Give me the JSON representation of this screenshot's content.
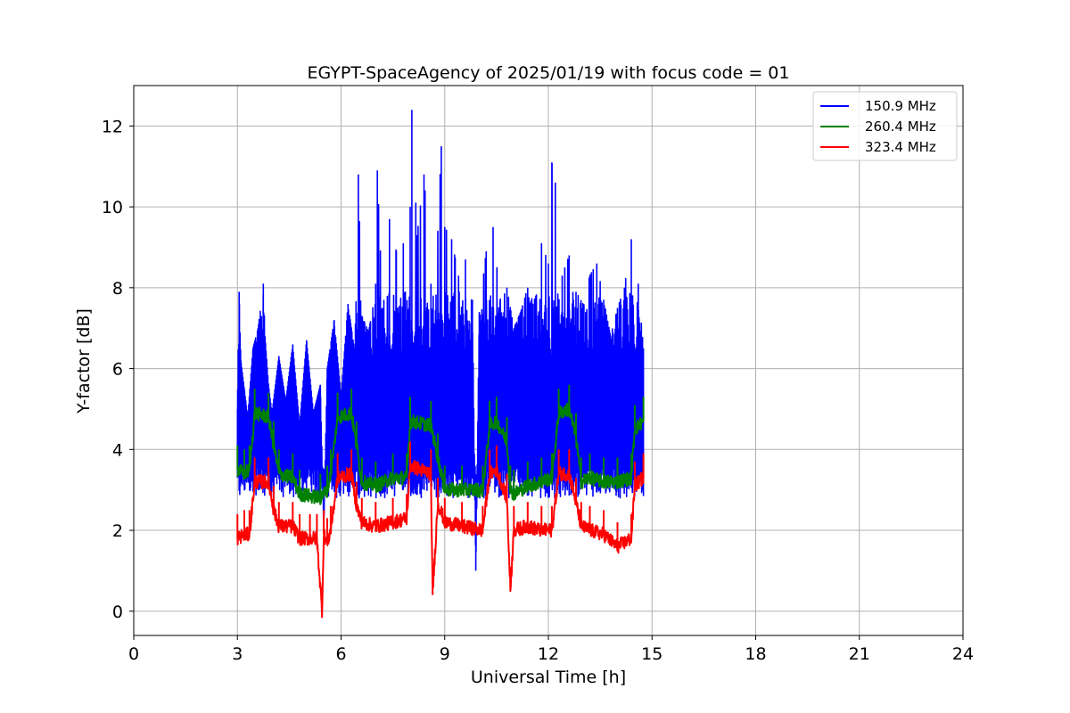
{
  "chart_data": {
    "type": "line",
    "title": "EGYPT-SpaceAgency of 2025/01/19 with focus code = 01",
    "xlabel": "Universal Time [h]",
    "ylabel": "Y-factor [dB]",
    "xlim": [
      0,
      24
    ],
    "ylim": [
      -0.6,
      13
    ],
    "xticks": [
      "0",
      "3",
      "6",
      "9",
      "12",
      "15",
      "18",
      "21",
      "24"
    ],
    "yticks": [
      "0",
      "2",
      "4",
      "6",
      "8",
      "10",
      "12"
    ],
    "grid": true,
    "legend_position": "top-right",
    "series": [
      {
        "name": "150.9 MHz",
        "color": "#0000ff",
        "x": [
          3.0,
          3.05,
          3.1,
          3.2,
          3.3,
          3.45,
          3.6,
          3.75,
          3.8,
          3.9,
          4.0,
          4.2,
          4.4,
          4.6,
          4.8,
          5.0,
          5.2,
          5.4,
          5.5,
          5.6,
          5.8,
          6.0,
          6.2,
          6.4,
          6.5,
          6.6,
          6.8,
          7.0,
          7.05,
          7.2,
          7.4,
          7.6,
          7.8,
          8.0,
          8.05,
          8.2,
          8.4,
          8.6,
          8.8,
          8.9,
          9.0,
          9.2,
          9.4,
          9.6,
          9.8,
          9.9,
          10.0,
          10.2,
          10.4,
          10.6,
          10.8,
          11.0,
          11.2,
          11.4,
          11.6,
          11.8,
          12.0,
          12.1,
          12.2,
          12.4,
          12.6,
          12.8,
          13.0,
          13.2,
          13.4,
          13.6,
          13.8,
          14.0,
          14.2,
          14.4,
          14.5,
          14.6,
          14.75
        ],
        "values": [
          5.0,
          7.9,
          6.2,
          5.5,
          4.8,
          6.5,
          7.0,
          8.1,
          6.8,
          5.6,
          4.9,
          6.3,
          5.2,
          6.6,
          4.6,
          6.7,
          4.9,
          5.6,
          2.0,
          6.0,
          7.2,
          5.3,
          7.6,
          6.4,
          10.8,
          7.3,
          6.9,
          8.1,
          10.9,
          7.5,
          9.7,
          8.9,
          9.1,
          10.0,
          12.4,
          9.3,
          10.8,
          8.1,
          9.4,
          11.5,
          9.5,
          9.2,
          8.3,
          8.7,
          7.7,
          1.0,
          7.4,
          8.9,
          9.5,
          7.7,
          8.0,
          7.0,
          7.4,
          8.0,
          7.7,
          9.1,
          8.6,
          11.1,
          10.6,
          8.3,
          8.8,
          7.9,
          7.6,
          8.3,
          8.6,
          7.7,
          6.8,
          7.5,
          8.0,
          9.2,
          6.3,
          8.1,
          6.5
        ],
        "band": [
          2.8,
          7.5
        ]
      },
      {
        "name": "260.4 MHz",
        "color": "#008000",
        "x": [
          3.0,
          3.2,
          3.35,
          3.5,
          3.9,
          4.05,
          4.2,
          4.6,
          4.8,
          5.4,
          5.6,
          5.7,
          5.9,
          6.3,
          6.45,
          6.6,
          7.0,
          7.5,
          7.9,
          8.0,
          8.6,
          8.8,
          9.0,
          9.5,
          10.1,
          10.3,
          10.5,
          10.8,
          10.9,
          11.0,
          11.4,
          11.8,
          12.1,
          12.3,
          12.6,
          12.8,
          12.95,
          13.2,
          13.6,
          14.0,
          14.4,
          14.5,
          14.75
        ],
        "values": [
          3.5,
          3.4,
          3.5,
          4.9,
          4.8,
          4.1,
          3.4,
          3.3,
          2.9,
          2.8,
          3.0,
          3.4,
          4.8,
          4.9,
          4.1,
          3.2,
          3.1,
          3.3,
          3.3,
          4.7,
          4.6,
          3.8,
          3.0,
          3.0,
          3.0,
          4.6,
          4.7,
          4.2,
          3.0,
          2.9,
          3.1,
          3.2,
          3.3,
          4.9,
          5.0,
          4.3,
          3.2,
          3.3,
          3.2,
          3.2,
          3.3,
          4.5,
          4.7
        ]
      },
      {
        "name": "323.4 MHz",
        "color": "#ff0000",
        "x": [
          3.0,
          3.2,
          3.35,
          3.5,
          3.9,
          4.05,
          4.2,
          4.6,
          4.8,
          5.1,
          5.3,
          5.45,
          5.5,
          5.6,
          5.7,
          5.9,
          6.3,
          6.45,
          6.6,
          7.0,
          7.5,
          7.9,
          8.0,
          8.6,
          8.65,
          8.8,
          9.0,
          9.5,
          10.1,
          10.3,
          10.5,
          10.8,
          10.9,
          11.0,
          11.4,
          11.8,
          12.1,
          12.3,
          12.6,
          12.8,
          12.95,
          13.2,
          13.6,
          14.0,
          14.4,
          14.5,
          14.75
        ],
        "values": [
          1.8,
          1.9,
          1.9,
          3.2,
          3.2,
          2.5,
          2.1,
          2.1,
          1.8,
          1.8,
          1.8,
          0.0,
          1.9,
          1.7,
          2.0,
          3.3,
          3.4,
          2.6,
          2.2,
          2.1,
          2.2,
          2.3,
          3.6,
          3.4,
          0.4,
          2.7,
          2.2,
          2.1,
          2.0,
          3.4,
          3.5,
          2.8,
          0.5,
          2.0,
          2.1,
          2.0,
          2.0,
          3.4,
          3.4,
          2.7,
          2.1,
          2.0,
          1.9,
          1.6,
          1.8,
          3.1,
          3.3
        ]
      }
    ]
  }
}
